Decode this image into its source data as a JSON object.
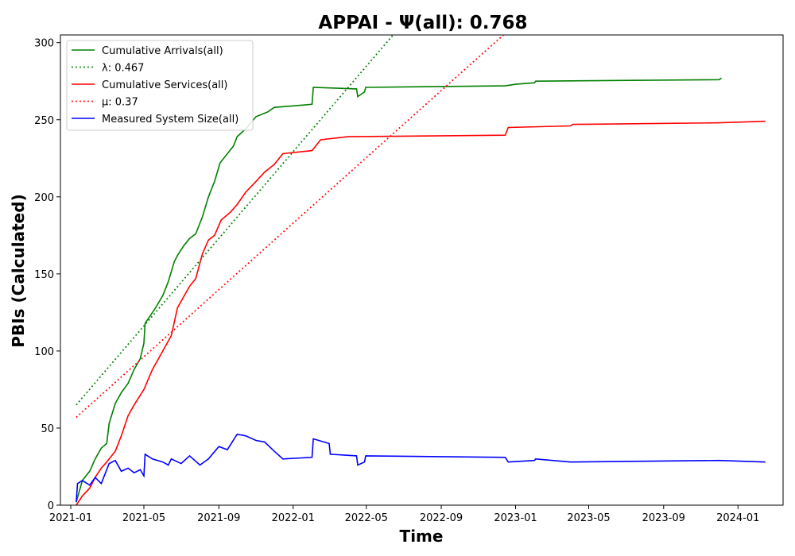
{
  "chart_data": {
    "type": "line",
    "title": "APPAI -  Ψ(all): 0.768",
    "xlabel": "Time",
    "ylabel": "PBIs (Calculated)",
    "xlim": [
      "2020-12-15",
      "2024-03-15"
    ],
    "ylim": [
      0,
      305
    ],
    "x_ticks": [
      "2021-01",
      "2021-05",
      "2021-09",
      "2022-01",
      "2022-05",
      "2022-09",
      "2023-01",
      "2023-05",
      "2023-09",
      "2024-01"
    ],
    "y_ticks": [
      0,
      50,
      100,
      150,
      200,
      250,
      300
    ],
    "legend_position": "top-left",
    "grid": false,
    "series": [
      {
        "name": "Cumulative Arrivals(all)",
        "color": "#008000",
        "style": "solid",
        "points": [
          [
            "2021-01-10",
            2
          ],
          [
            "2021-01-20",
            16
          ],
          [
            "2021-02-01",
            22
          ],
          [
            "2021-02-10",
            30
          ],
          [
            "2021-02-20",
            37
          ],
          [
            "2021-03-01",
            40
          ],
          [
            "2021-03-05",
            53
          ],
          [
            "2021-03-15",
            66
          ],
          [
            "2021-03-25",
            73
          ],
          [
            "2021-04-05",
            79
          ],
          [
            "2021-04-15",
            88
          ],
          [
            "2021-04-25",
            95
          ],
          [
            "2021-05-01",
            105
          ],
          [
            "2021-05-03",
            118
          ],
          [
            "2021-05-10",
            122
          ],
          [
            "2021-05-20",
            128
          ],
          [
            "2021-06-01",
            136
          ],
          [
            "2021-06-10",
            145
          ],
          [
            "2021-06-20",
            158
          ],
          [
            "2021-06-25",
            162
          ],
          [
            "2021-07-05",
            168
          ],
          [
            "2021-07-15",
            173
          ],
          [
            "2021-07-25",
            176
          ],
          [
            "2021-08-05",
            187
          ],
          [
            "2021-08-15",
            200
          ],
          [
            "2021-08-25",
            210
          ],
          [
            "2021-09-03",
            222
          ],
          [
            "2021-09-15",
            228
          ],
          [
            "2021-09-25",
            233
          ],
          [
            "2021-10-01",
            239
          ],
          [
            "2021-10-15",
            244
          ],
          [
            "2021-11-01",
            252
          ],
          [
            "2021-11-20",
            255
          ],
          [
            "2021-12-01",
            258
          ],
          [
            "2022-01-01",
            259
          ],
          [
            "2022-02-01",
            260
          ],
          [
            "2022-02-03",
            271
          ],
          [
            "2022-04-15",
            270
          ],
          [
            "2022-04-17",
            265
          ],
          [
            "2022-04-28",
            268
          ],
          [
            "2022-04-30",
            271
          ],
          [
            "2022-12-15",
            272
          ],
          [
            "2023-01-01",
            273
          ],
          [
            "2023-02-01",
            274
          ],
          [
            "2023-02-03",
            275
          ],
          [
            "2023-12-01",
            276
          ],
          [
            "2023-12-05",
            277
          ]
        ]
      },
      {
        "name": "λ: 0.467",
        "color": "#008000",
        "style": "dotted",
        "points": [
          [
            "2021-01-10",
            65
          ],
          [
            "2022-06-14",
            305
          ]
        ]
      },
      {
        "name": "Cumulative Services(all)",
        "color": "#ff0000",
        "style": "solid",
        "points": [
          [
            "2021-01-10",
            0
          ],
          [
            "2021-01-20",
            6
          ],
          [
            "2021-02-01",
            11
          ],
          [
            "2021-02-10",
            18
          ],
          [
            "2021-02-20",
            24
          ],
          [
            "2021-03-01",
            28
          ],
          [
            "2021-03-15",
            35
          ],
          [
            "2021-03-25",
            45
          ],
          [
            "2021-04-05",
            58
          ],
          [
            "2021-04-15",
            65
          ],
          [
            "2021-05-01",
            75
          ],
          [
            "2021-05-15",
            88
          ],
          [
            "2021-06-01",
            100
          ],
          [
            "2021-06-15",
            110
          ],
          [
            "2021-06-25",
            128
          ],
          [
            "2021-07-05",
            135
          ],
          [
            "2021-07-15",
            142
          ],
          [
            "2021-07-25",
            147
          ],
          [
            "2021-08-05",
            163
          ],
          [
            "2021-08-15",
            172
          ],
          [
            "2021-08-25",
            175
          ],
          [
            "2021-09-05",
            185
          ],
          [
            "2021-09-20",
            190
          ],
          [
            "2021-10-01",
            195
          ],
          [
            "2021-10-15",
            203
          ],
          [
            "2021-11-01",
            210
          ],
          [
            "2021-11-15",
            216
          ],
          [
            "2021-12-01",
            221
          ],
          [
            "2021-12-15",
            228
          ],
          [
            "2022-02-01",
            230
          ],
          [
            "2022-02-15",
            237
          ],
          [
            "2022-04-01",
            239
          ],
          [
            "2022-12-15",
            240
          ],
          [
            "2022-12-20",
            245
          ],
          [
            "2023-04-01",
            246
          ],
          [
            "2023-04-05",
            247
          ],
          [
            "2023-12-01",
            248
          ],
          [
            "2024-02-15",
            249
          ]
        ]
      },
      {
        "name": "μ: 0.37",
        "color": "#ff0000",
        "style": "dotted",
        "points": [
          [
            "2021-01-10",
            57
          ],
          [
            "2022-12-12",
            305
          ]
        ]
      },
      {
        "name": "Measured System Size(all)",
        "color": "#0000ff",
        "style": "solid",
        "points": [
          [
            "2021-01-10",
            2
          ],
          [
            "2021-01-12",
            14
          ],
          [
            "2021-01-20",
            16
          ],
          [
            "2021-02-01",
            13
          ],
          [
            "2021-02-10",
            18
          ],
          [
            "2021-02-20",
            14
          ],
          [
            "2021-03-05",
            27
          ],
          [
            "2021-03-15",
            29
          ],
          [
            "2021-03-25",
            22
          ],
          [
            "2021-04-05",
            24
          ],
          [
            "2021-04-15",
            21
          ],
          [
            "2021-04-25",
            23
          ],
          [
            "2021-05-01",
            19
          ],
          [
            "2021-05-03",
            33
          ],
          [
            "2021-05-15",
            30
          ],
          [
            "2021-06-01",
            28
          ],
          [
            "2021-06-10",
            26
          ],
          [
            "2021-06-15",
            30
          ],
          [
            "2021-07-01",
            27
          ],
          [
            "2021-07-15",
            32
          ],
          [
            "2021-08-01",
            26
          ],
          [
            "2021-08-15",
            30
          ],
          [
            "2021-09-01",
            38
          ],
          [
            "2021-09-15",
            36
          ],
          [
            "2021-10-01",
            46
          ],
          [
            "2021-10-15",
            45
          ],
          [
            "2021-11-01",
            42
          ],
          [
            "2021-11-15",
            41
          ],
          [
            "2021-12-01",
            35
          ],
          [
            "2021-12-15",
            30
          ],
          [
            "2022-02-01",
            31
          ],
          [
            "2022-02-03",
            43
          ],
          [
            "2022-03-01",
            40
          ],
          [
            "2022-03-03",
            33
          ],
          [
            "2022-04-15",
            32
          ],
          [
            "2022-04-17",
            26
          ],
          [
            "2022-04-28",
            28
          ],
          [
            "2022-04-30",
            32
          ],
          [
            "2022-12-15",
            31
          ],
          [
            "2022-12-20",
            28
          ],
          [
            "2023-02-01",
            29
          ],
          [
            "2023-02-03",
            30
          ],
          [
            "2023-04-01",
            28
          ],
          [
            "2023-12-01",
            29
          ],
          [
            "2024-02-15",
            28
          ]
        ]
      }
    ]
  }
}
